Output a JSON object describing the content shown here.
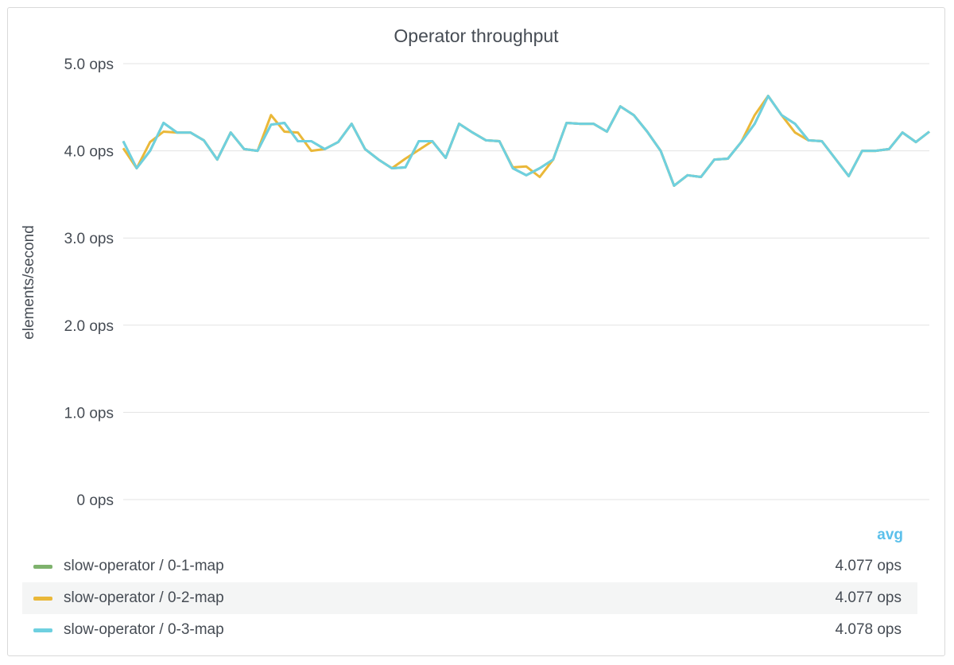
{
  "panel": {
    "title": "Operator throughput"
  },
  "legend": {
    "column_header": "avg"
  },
  "chart_data": {
    "type": "line",
    "title": "Operator throughput",
    "ylabel": "elements/second",
    "ylim": [
      0,
      5
    ],
    "y_ticks": [
      {
        "value": 0,
        "label": "0 ops"
      },
      {
        "value": 1,
        "label": "1.0 ops"
      },
      {
        "value": 2,
        "label": "2.0 ops"
      },
      {
        "value": 3,
        "label": "3.0 ops"
      },
      {
        "value": 4,
        "label": "4.0 ops"
      },
      {
        "value": 5,
        "label": "5.0 ops"
      }
    ],
    "grid": true,
    "legend_position": "bottom",
    "series": [
      {
        "name": "slow-operator / 0-1-map",
        "color": "#7eb26d",
        "avg": "4.077 ops",
        "values": [
          4.11,
          3.8,
          4.0,
          4.32,
          4.21,
          4.21,
          4.12,
          3.9,
          4.21,
          4.02,
          4.0,
          4.3,
          4.32,
          4.11,
          4.11,
          4.02,
          4.1,
          4.31,
          4.02,
          3.9,
          3.8,
          3.81,
          4.11,
          4.11,
          3.92,
          4.31,
          4.21,
          4.12,
          4.11,
          3.8,
          3.72,
          3.8,
          3.9,
          4.32,
          4.31,
          4.31,
          4.22,
          4.51,
          4.41,
          4.22,
          4.0,
          3.6,
          3.72,
          3.7,
          3.9,
          3.91,
          4.1,
          4.31,
          4.63,
          4.41,
          4.31,
          4.12,
          4.11,
          3.91,
          3.71,
          4.0,
          4.0,
          4.02,
          4.21,
          4.1,
          4.22
        ]
      },
      {
        "name": "slow-operator / 0-2-map",
        "color": "#eab839",
        "avg": "4.077 ops",
        "values": [
          4.03,
          3.8,
          4.1,
          4.22,
          4.21,
          4.21,
          4.12,
          3.9,
          4.21,
          4.02,
          4.0,
          4.41,
          4.22,
          4.21,
          4.0,
          4.02,
          4.1,
          4.31,
          4.02,
          3.9,
          3.8,
          3.91,
          4.01,
          4.11,
          3.92,
          4.31,
          4.21,
          4.12,
          4.11,
          3.81,
          3.82,
          3.7,
          3.9,
          4.32,
          4.31,
          4.31,
          4.22,
          4.51,
          4.41,
          4.22,
          4.0,
          3.6,
          3.72,
          3.7,
          3.9,
          3.91,
          4.1,
          4.41,
          4.63,
          4.41,
          4.21,
          4.12,
          4.11,
          3.91,
          3.71,
          4.0,
          4.0,
          4.02,
          4.21,
          4.1,
          4.22
        ]
      },
      {
        "name": "slow-operator / 0-3-map",
        "color": "#6ed0e0",
        "avg": "4.078 ops",
        "values": [
          4.11,
          3.8,
          4.0,
          4.32,
          4.21,
          4.21,
          4.12,
          3.9,
          4.21,
          4.02,
          4.0,
          4.3,
          4.32,
          4.11,
          4.11,
          4.02,
          4.1,
          4.31,
          4.02,
          3.9,
          3.8,
          3.81,
          4.11,
          4.11,
          3.92,
          4.31,
          4.21,
          4.12,
          4.11,
          3.8,
          3.72,
          3.8,
          3.9,
          4.32,
          4.31,
          4.31,
          4.22,
          4.51,
          4.41,
          4.22,
          4.0,
          3.6,
          3.72,
          3.7,
          3.9,
          3.91,
          4.1,
          4.31,
          4.63,
          4.41,
          4.31,
          4.12,
          4.11,
          3.91,
          3.71,
          4.0,
          4.0,
          4.02,
          4.21,
          4.1,
          4.22
        ]
      }
    ]
  }
}
